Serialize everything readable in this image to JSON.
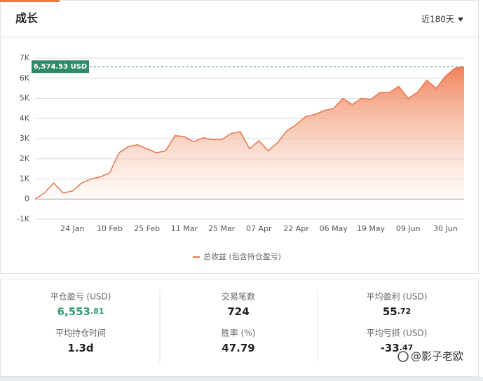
{
  "header": {
    "title": "成长",
    "range": "近180天"
  },
  "chart_data": {
    "type": "area",
    "categories": [
      null,
      null,
      null,
      null,
      "24 Jan",
      null,
      null,
      null,
      "10 Feb",
      null,
      null,
      null,
      "25 Feb",
      null,
      null,
      null,
      "11 Mar",
      null,
      null,
      null,
      "25 Mar",
      null,
      null,
      null,
      "07 Apr",
      null,
      null,
      null,
      "22 Apr",
      null,
      null,
      null,
      "06 May",
      null,
      null,
      null,
      "19 May",
      null,
      null,
      null,
      "09 Jun",
      null,
      null,
      null,
      "30 Jun",
      null,
      null
    ],
    "series": [
      {
        "name": "总收益 (包含持仓盈亏)",
        "color": "#e8764a",
        "values": [
          0,
          300,
          800,
          300,
          400,
          800,
          1000,
          1100,
          1300,
          2300,
          2600,
          2700,
          2500,
          2300,
          2400,
          3150,
          3100,
          2850,
          3050,
          2950,
          2950,
          3250,
          3350,
          2500,
          2900,
          2400,
          2800,
          3400,
          3700,
          4100,
          4200,
          4400,
          4500,
          5000,
          4700,
          5000,
          4950,
          5300,
          5300,
          5600,
          5000,
          5300,
          5900,
          5500,
          6100,
          6500,
          6574.53
        ]
      }
    ],
    "ylim": [
      -1000,
      7000
    ],
    "yticks": [
      {
        "value": -1000,
        "label": "-1K"
      },
      0,
      {
        "value": 1000,
        "label": "1K"
      },
      {
        "value": 2000,
        "label": "2K"
      },
      {
        "value": 3000,
        "label": "3K"
      },
      {
        "value": 4000,
        "label": "4K"
      },
      {
        "value": 5000,
        "label": "5K"
      },
      {
        "value": 6000,
        "label": "6K"
      },
      {
        "value": 7000,
        "label": "7K"
      }
    ],
    "grid": true,
    "reference_line": {
      "value": 6574.53,
      "label": "6,574.53 USD"
    }
  },
  "stats": {
    "columns": [
      {
        "items": [
          {
            "label": "平仓盈亏 (USD)",
            "value": "6,553",
            "decimals": ".81"
          },
          {
            "label": "平均持仓时间",
            "value": "1.3d"
          }
        ]
      },
      {
        "items": [
          {
            "label": "交易笔数",
            "value": "724"
          },
          {
            "label": "胜率 (%)",
            "value": "47.79"
          }
        ]
      },
      {
        "items": [
          {
            "label": "平均盈利 (USD)",
            "value": "55",
            "decimals": ".72"
          },
          {
            "label": "平均亏损 (USD)",
            "value": "-33",
            "decimals": ".47"
          }
        ]
      }
    ]
  },
  "watermark": "@影子老欧"
}
